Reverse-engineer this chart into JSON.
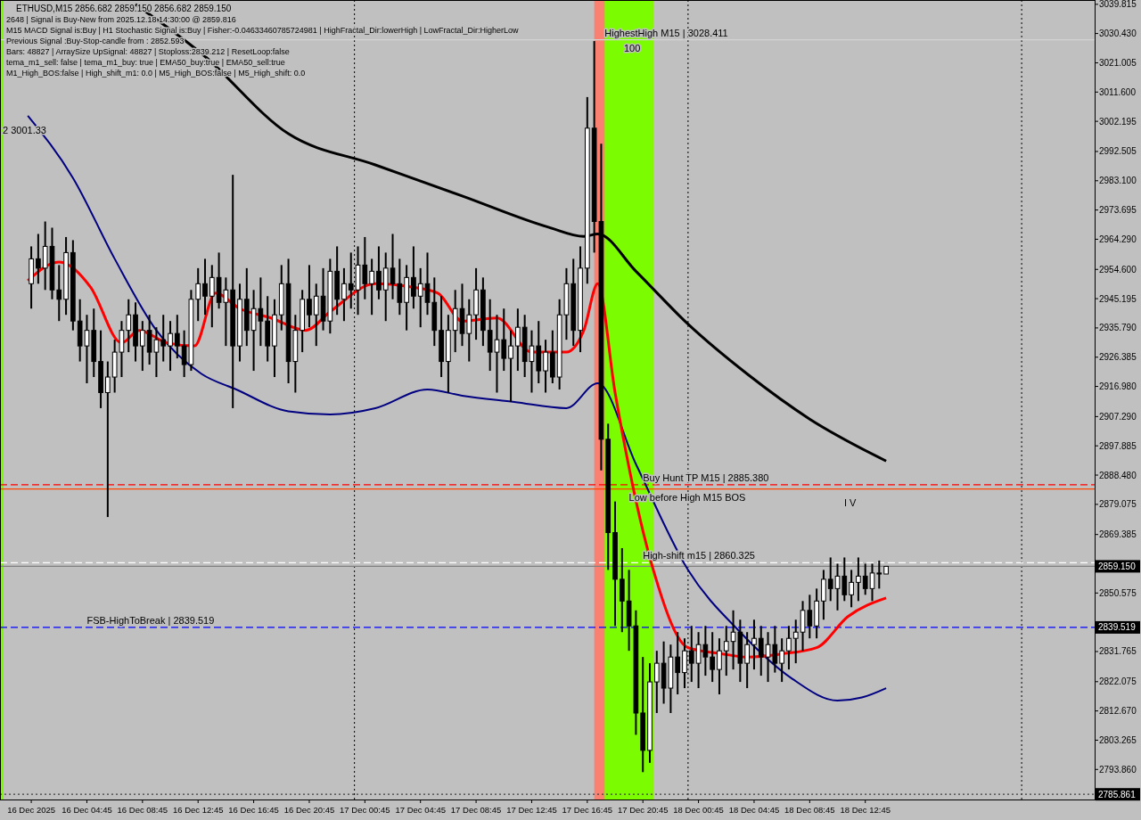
{
  "chart_data": {
    "type": "candlestick",
    "title": "ETHUSD,M15  2856.682 2859.150 2856.682 2859.150",
    "x": [
      "2025-12-16T00:45",
      "2025-12-16T01:15",
      "2025-12-16T01:45",
      "2025-12-16T02:15",
      "2025-12-16T02:45",
      "2025-12-16T03:15",
      "2025-12-16T03:45",
      "2025-12-16T04:15",
      "2025-12-16T04:45",
      "2025-12-16T05:15",
      "2025-12-16T05:45",
      "2025-12-16T06:15",
      "2025-12-16T06:45",
      "2025-12-16T07:15",
      "2025-12-16T07:45",
      "2025-12-16T08:15",
      "2025-12-16T08:45",
      "2025-12-16T09:15",
      "2025-12-16T09:45",
      "2025-12-16T10:15",
      "2025-12-16T10:45",
      "2025-12-16T11:15",
      "2025-12-16T11:45",
      "2025-12-16T12:15",
      "2025-12-16T12:45",
      "2025-12-16T13:15",
      "2025-12-16T13:45",
      "2025-12-16T14:15",
      "2025-12-16T14:45",
      "2025-12-16T15:15",
      "2025-12-16T15:45",
      "2025-12-16T16:15",
      "2025-12-16T16:45",
      "2025-12-16T17:15",
      "2025-12-16T17:45",
      "2025-12-16T18:15",
      "2025-12-16T18:45",
      "2025-12-16T19:15",
      "2025-12-16T19:45",
      "2025-12-16T20:15",
      "2025-12-16T20:45",
      "2025-12-16T21:15",
      "2025-12-16T21:45",
      "2025-12-16T22:15",
      "2025-12-16T22:45",
      "2025-12-16T23:15",
      "2025-12-16T23:45",
      "2025-12-17T00:15",
      "2025-12-17T00:45",
      "2025-12-17T01:15",
      "2025-12-17T01:45",
      "2025-12-17T02:15",
      "2025-12-17T02:45",
      "2025-12-17T03:15",
      "2025-12-17T03:45",
      "2025-12-17T04:15",
      "2025-12-17T04:45",
      "2025-12-17T05:15",
      "2025-12-17T05:45",
      "2025-12-17T06:15",
      "2025-12-17T06:45",
      "2025-12-17T07:15",
      "2025-12-17T07:45",
      "2025-12-17T08:15",
      "2025-12-17T08:45",
      "2025-12-17T09:15",
      "2025-12-17T09:45",
      "2025-12-17T10:15",
      "2025-12-17T10:45",
      "2025-12-17T11:15",
      "2025-12-17T11:45",
      "2025-12-17T12:15",
      "2025-12-17T12:45",
      "2025-12-17T13:15",
      "2025-12-17T13:45",
      "2025-12-17T14:15",
      "2025-12-17T14:45",
      "2025-12-17T15:15",
      "2025-12-17T15:45",
      "2025-12-17T16:15",
      "2025-12-17T16:45",
      "2025-12-17T17:15",
      "2025-12-17T17:45",
      "2025-12-17T18:15",
      "2025-12-17T18:45",
      "2025-12-17T19:15",
      "2025-12-17T19:45",
      "2025-12-17T20:15",
      "2025-12-17T20:45",
      "2025-12-17T21:15",
      "2025-12-17T21:45",
      "2025-12-17T22:15",
      "2025-12-17T22:45",
      "2025-12-17T23:15",
      "2025-12-17T23:45",
      "2025-12-18T00:15",
      "2025-12-18T00:45",
      "2025-12-18T01:15",
      "2025-12-18T01:45",
      "2025-12-18T02:15",
      "2025-12-18T02:45",
      "2025-12-18T03:15",
      "2025-12-18T03:45",
      "2025-12-18T04:15",
      "2025-12-18T04:45",
      "2025-12-18T05:15",
      "2025-12-18T05:45",
      "2025-12-18T06:15",
      "2025-12-18T06:45",
      "2025-12-18T07:15",
      "2025-12-18T07:45",
      "2025-12-18T08:15",
      "2025-12-18T08:45",
      "2025-12-18T09:15",
      "2025-12-18T09:45",
      "2025-12-18T10:15",
      "2025-12-18T10:45",
      "2025-12-18T11:15",
      "2025-12-18T11:45",
      "2025-12-18T12:15",
      "2025-12-18T12:45",
      "2025-12-18T13:15",
      "2025-12-18T13:45",
      "2025-12-18T14:15"
    ],
    "ohlc": [
      [
        2950,
        2962,
        2942,
        2958
      ],
      [
        2958,
        2966,
        2950,
        2955
      ],
      [
        2955,
        2970,
        2948,
        2962
      ],
      [
        2962,
        2968,
        2945,
        2948
      ],
      [
        2948,
        2956,
        2938,
        2945
      ],
      [
        2945,
        2965,
        2940,
        2960
      ],
      [
        2960,
        2964,
        2935,
        2938
      ],
      [
        2938,
        2945,
        2925,
        2930
      ],
      [
        2930,
        2940,
        2918,
        2935
      ],
      [
        2935,
        2942,
        2920,
        2925
      ],
      [
        2925,
        2935,
        2910,
        2915
      ],
      [
        2915,
        2925,
        2875,
        2920
      ],
      [
        2920,
        2932,
        2915,
        2928
      ],
      [
        2928,
        2938,
        2920,
        2935
      ],
      [
        2935,
        2945,
        2928,
        2940
      ],
      [
        2940,
        2944,
        2925,
        2930
      ],
      [
        2930,
        2938,
        2922,
        2935
      ],
      [
        2935,
        2940,
        2924,
        2928
      ],
      [
        2928,
        2936,
        2920,
        2932
      ],
      [
        2932,
        2940,
        2925,
        2930
      ],
      [
        2930,
        2938,
        2922,
        2934
      ],
      [
        2934,
        2940,
        2926,
        2930
      ],
      [
        2930,
        2935,
        2920,
        2924
      ],
      [
        2924,
        2948,
        2922,
        2945
      ],
      [
        2945,
        2955,
        2938,
        2950
      ],
      [
        2950,
        2958,
        2940,
        2946
      ],
      [
        2946,
        2956,
        2936,
        2952
      ],
      [
        2952,
        2960,
        2942,
        2944
      ],
      [
        2944,
        2952,
        2930,
        2948
      ],
      [
        2948,
        2985,
        2910,
        2930
      ],
      [
        2930,
        2950,
        2925,
        2945
      ],
      [
        2945,
        2955,
        2930,
        2935
      ],
      [
        2935,
        2948,
        2922,
        2942
      ],
      [
        2942,
        2952,
        2930,
        2938
      ],
      [
        2938,
        2946,
        2925,
        2930
      ],
      [
        2930,
        2945,
        2920,
        2940
      ],
      [
        2940,
        2956,
        2935,
        2950
      ],
      [
        2950,
        2958,
        2918,
        2925
      ],
      [
        2925,
        2940,
        2915,
        2935
      ],
      [
        2935,
        2948,
        2928,
        2945
      ],
      [
        2945,
        2956,
        2936,
        2940
      ],
      [
        2940,
        2950,
        2930,
        2946
      ],
      [
        2946,
        2955,
        2935,
        2938
      ],
      [
        2938,
        2958,
        2934,
        2954
      ],
      [
        2954,
        2962,
        2940,
        2945
      ],
      [
        2945,
        2955,
        2938,
        2950
      ],
      [
        2950,
        2960,
        2942,
        2948
      ],
      [
        2948,
        2962,
        2940,
        2956
      ],
      [
        2956,
        2965,
        2945,
        2950
      ],
      [
        2950,
        2958,
        2940,
        2954
      ],
      [
        2954,
        2962,
        2945,
        2948
      ],
      [
        2948,
        2960,
        2938,
        2955
      ],
      [
        2955,
        2966,
        2945,
        2950
      ],
      [
        2950,
        2958,
        2940,
        2944
      ],
      [
        2944,
        2956,
        2935,
        2952
      ],
      [
        2952,
        2962,
        2942,
        2946
      ],
      [
        2946,
        2955,
        2936,
        2950
      ],
      [
        2950,
        2960,
        2940,
        2944
      ],
      [
        2944,
        2952,
        2930,
        2935
      ],
      [
        2935,
        2946,
        2920,
        2925
      ],
      [
        2925,
        2940,
        2915,
        2935
      ],
      [
        2935,
        2948,
        2928,
        2942
      ],
      [
        2942,
        2950,
        2930,
        2934
      ],
      [
        2934,
        2945,
        2925,
        2940
      ],
      [
        2940,
        2955,
        2932,
        2948
      ],
      [
        2948,
        2952,
        2930,
        2935
      ],
      [
        2935,
        2945,
        2922,
        2928
      ],
      [
        2928,
        2940,
        2915,
        2932
      ],
      [
        2932,
        2942,
        2922,
        2926
      ],
      [
        2926,
        2935,
        2912,
        2930
      ],
      [
        2930,
        2942,
        2922,
        2936
      ],
      [
        2936,
        2940,
        2920,
        2925
      ],
      [
        2925,
        2935,
        2915,
        2930
      ],
      [
        2930,
        2938,
        2918,
        2922
      ],
      [
        2922,
        2932,
        2915,
        2928
      ],
      [
        2928,
        2935,
        2918,
        2920
      ],
      [
        2920,
        2945,
        2916,
        2940
      ],
      [
        2940,
        2955,
        2932,
        2950
      ],
      [
        2950,
        2958,
        2930,
        2935
      ],
      [
        2935,
        2962,
        2928,
        2955
      ],
      [
        2955,
        3010,
        2950,
        3000
      ],
      [
        3000,
        3028,
        2960,
        2970
      ],
      [
        2970,
        2995,
        2890,
        2900
      ],
      [
        2900,
        2905,
        2858,
        2870
      ],
      [
        2870,
        2880,
        2840,
        2855
      ],
      [
        2855,
        2865,
        2838,
        2848
      ],
      [
        2848,
        2858,
        2832,
        2840
      ],
      [
        2840,
        2845,
        2805,
        2812
      ],
      [
        2812,
        2830,
        2793,
        2800
      ],
      [
        2800,
        2828,
        2796,
        2822
      ],
      [
        2822,
        2832,
        2812,
        2828
      ],
      [
        2828,
        2835,
        2815,
        2820
      ],
      [
        2820,
        2834,
        2812,
        2830
      ],
      [
        2830,
        2838,
        2818,
        2825
      ],
      [
        2825,
        2836,
        2820,
        2832
      ],
      [
        2832,
        2840,
        2822,
        2828
      ],
      [
        2828,
        2838,
        2820,
        2834
      ],
      [
        2834,
        2840,
        2824,
        2830
      ],
      [
        2830,
        2838,
        2822,
        2826
      ],
      [
        2826,
        2836,
        2818,
        2832
      ],
      [
        2832,
        2840,
        2824,
        2835
      ],
      [
        2835,
        2845,
        2826,
        2838
      ],
      [
        2838,
        2842,
        2822,
        2828
      ],
      [
        2828,
        2838,
        2820,
        2834
      ],
      [
        2834,
        2842,
        2826,
        2836
      ],
      [
        2836,
        2840,
        2824,
        2830
      ],
      [
        2830,
        2838,
        2822,
        2834
      ],
      [
        2834,
        2840,
        2825,
        2828
      ],
      [
        2828,
        2836,
        2822,
        2832
      ],
      [
        2832,
        2840,
        2826,
        2836
      ],
      [
        2836,
        2842,
        2828,
        2838
      ],
      [
        2838,
        2848,
        2832,
        2845
      ],
      [
        2845,
        2850,
        2836,
        2840
      ],
      [
        2840,
        2852,
        2836,
        2848
      ],
      [
        2848,
        2858,
        2842,
        2855
      ],
      [
        2855,
        2862,
        2848,
        2852
      ],
      [
        2852,
        2860,
        2845,
        2856
      ],
      [
        2856,
        2862,
        2848,
        2850
      ],
      [
        2850,
        2858,
        2846,
        2854
      ],
      [
        2854,
        2862,
        2848,
        2856
      ],
      [
        2856,
        2860,
        2850,
        2852
      ],
      [
        2852,
        2860,
        2848,
        2857
      ],
      [
        2857,
        2861,
        2852,
        2856.682
      ],
      [
        2856.682,
        2859.15,
        2856.682,
        2859.15
      ]
    ],
    "series": [
      {
        "type": "line",
        "color": "#000000",
        "x": [
          "2025-12-16T08:15",
          "2025-12-16T13:00",
          "2025-12-16T19:15",
          "2025-12-17T01:30",
          "2025-12-17T07:45",
          "2025-12-17T14:00",
          "2025-12-17T16:30",
          "2025-12-17T17:30",
          "2025-12-17T20:15",
          "2025-12-18T00:00",
          "2025-12-18T04:15",
          "2025-12-18T08:45",
          "2025-12-18T14:15"
        ],
        "values": [
          3039.8,
          3024,
          2998.2,
          2988.2,
          2978.2,
          2968.1,
          2965.2,
          2966,
          2954,
          2937,
          2921,
          2906.5,
          2893
        ]
      },
      {
        "type": "line",
        "color": "#000080",
        "x": [
          "2025-12-16T00:30",
          "2025-12-16T03:45",
          "2025-12-16T06:45",
          "2025-12-16T09:45",
          "2025-12-16T13:00",
          "2025-12-16T15:30",
          "2025-12-16T19:15",
          "2025-12-16T22:15",
          "2025-12-17T01:30",
          "2025-12-17T05:15",
          "2025-12-17T07:45",
          "2025-12-17T11:30",
          "2025-12-17T15:15",
          "2025-12-17T17:30",
          "2025-12-17T20:15",
          "2025-12-18T00:00",
          "2025-12-18T03:45",
          "2025-12-18T07:30",
          "2025-12-18T10:45",
          "2025-12-18T12:30",
          "2025-12-18T14:15"
        ],
        "values": [
          3004,
          2984,
          2958,
          2935,
          2921,
          2916,
          2909,
          2908,
          2910,
          2916,
          2914,
          2912,
          2910,
          2918,
          2892,
          2858,
          2838,
          2823,
          2816,
          2817,
          2820
        ]
      },
      {
        "type": "line",
        "color": "#ff0000",
        "x": [
          "2025-12-16T00:30",
          "2025-12-16T02:45",
          "2025-12-16T05:00",
          "2025-12-16T07:15",
          "2025-12-16T08:30",
          "2025-12-16T10:30",
          "2025-12-16T12:30",
          "2025-12-16T14:00",
          "2025-12-16T15:45",
          "2025-12-16T18:00",
          "2025-12-16T20:30",
          "2025-12-16T22:15",
          "2025-12-17T01:30",
          "2025-12-17T04:00",
          "2025-12-17T06:00",
          "2025-12-17T07:45",
          "2025-12-17T10:15",
          "2025-12-17T12:45",
          "2025-12-17T15:15",
          "2025-12-17T16:30",
          "2025-12-17T17:30",
          "2025-12-17T18:45",
          "2025-12-17T21:30",
          "2025-12-18T00:00",
          "2025-12-18T02:30",
          "2025-12-18T04:15",
          "2025-12-18T06:45",
          "2025-12-18T09:15",
          "2025-12-18T11:30",
          "2025-12-18T14:15"
        ],
        "values": [
          2951,
          2957,
          2949,
          2931,
          2935,
          2931,
          2930,
          2947,
          2942,
          2939,
          2935,
          2941,
          2950,
          2949,
          2947,
          2938,
          2939,
          2928,
          2928,
          2935,
          2950,
          2915,
          2858,
          2833,
          2831,
          2830,
          2831,
          2833,
          2843,
          2849
        ]
      }
    ],
    "xlim": [
      "2025-12-15T22:30",
      "2025-12-19T05:15"
    ],
    "ylim": [
      2784.2,
      3041.2
    ],
    "xticks": [
      {
        "value": "2025-12-16T00:45",
        "label": "16 Dec 2025"
      },
      {
        "value": "2025-12-16T04:45",
        "label": "16 Dec 04:45"
      },
      {
        "value": "2025-12-16T08:45",
        "label": "16 Dec 08:45"
      },
      {
        "value": "2025-12-16T12:45",
        "label": "16 Dec 12:45"
      },
      {
        "value": "2025-12-16T16:45",
        "label": "16 Dec 16:45"
      },
      {
        "value": "2025-12-16T20:45",
        "label": "16 Dec 20:45"
      },
      {
        "value": "2025-12-17T00:45",
        "label": "17 Dec 00:45"
      },
      {
        "value": "2025-12-17T04:45",
        "label": "17 Dec 04:45"
      },
      {
        "value": "2025-12-17T08:45",
        "label": "17 Dec 08:45"
      },
      {
        "value": "2025-12-17T12:45",
        "label": "17 Dec 12:45"
      },
      {
        "value": "2025-12-17T16:45",
        "label": "17 Dec 16:45"
      },
      {
        "value": "2025-12-17T20:45",
        "label": "17 Dec 20:45"
      },
      {
        "value": "2025-12-18T00:45",
        "label": "18 Dec 00:45"
      },
      {
        "value": "2025-12-18T04:45",
        "label": "18 Dec 04:45"
      },
      {
        "value": "2025-12-18T08:45",
        "label": "18 Dec 08:45"
      },
      {
        "value": "2025-12-18T12:45",
        "label": "18 Dec 12:45"
      }
    ],
    "yticks": [
      {
        "value": 3039.815,
        "label": "3039.815"
      },
      {
        "value": 3030.43,
        "label": "3030.430"
      },
      {
        "value": 3021.005,
        "label": "3021.005"
      },
      {
        "value": 3011.6,
        "label": "3011.600"
      },
      {
        "value": 3002.195,
        "label": "3002.195"
      },
      {
        "value": 2992.505,
        "label": "2992.505"
      },
      {
        "value": 2983.1,
        "label": "2983.100"
      },
      {
        "value": 2973.695,
        "label": "2973.695"
      },
      {
        "value": 2964.29,
        "label": "2964.290"
      },
      {
        "value": 2954.6,
        "label": "2954.600"
      },
      {
        "value": 2945.195,
        "label": "2945.195"
      },
      {
        "value": 2935.79,
        "label": "2935.790"
      },
      {
        "value": 2926.385,
        "label": "2926.385"
      },
      {
        "value": 2916.98,
        "label": "2916.980"
      },
      {
        "value": 2907.29,
        "label": "2907.290"
      },
      {
        "value": 2897.885,
        "label": "2897.885"
      },
      {
        "value": 2888.48,
        "label": "2888.480"
      },
      {
        "value": 2879.075,
        "label": "2879.075"
      },
      {
        "value": 2869.385,
        "label": "2869.385"
      },
      {
        "value": 2850.575,
        "label": "2850.575"
      },
      {
        "value": 2831.765,
        "label": "2831.765"
      },
      {
        "value": 2822.075,
        "label": "2822.075"
      },
      {
        "value": 2812.67,
        "label": "2812.670"
      },
      {
        "value": 2803.265,
        "label": "2803.265"
      },
      {
        "value": 2793.86,
        "label": "2793.860"
      }
    ],
    "bands": [
      {
        "axis": "x",
        "from": "2025-12-15T22:30",
        "to": "2025-12-15T22:45",
        "color": "#7cfc00"
      },
      {
        "axis": "x",
        "from": "2025-12-17T17:15",
        "to": "2025-12-17T21:30",
        "color": "#fa8072"
      },
      {
        "axis": "x",
        "from": "2025-12-17T18:00",
        "to": "2025-12-17T21:30",
        "color": "#7cfc00"
      }
    ],
    "ref_lines": [
      {
        "axis": "x",
        "value": "2025-12-17T00:00",
        "color": "#000000",
        "line_style": "dotted"
      },
      {
        "axis": "x",
        "value": "2025-12-18T00:00",
        "color": "#000000",
        "line_style": "dotted"
      },
      {
        "axis": "x",
        "value": "2025-12-19T00:00",
        "color": "#000000",
        "line_style": "dotted"
      },
      {
        "axis": "y",
        "value": 3028.411,
        "color": "#d3d3d3",
        "line_style": "solid"
      },
      {
        "axis": "y",
        "value": 2885.38,
        "color": "#ff0000",
        "line_style": "dashed"
      },
      {
        "axis": "y",
        "value": 2884.0,
        "color": "#ff4500",
        "line_style": "solid"
      },
      {
        "axis": "y",
        "value": 2860.325,
        "color": "#ffffff",
        "line_style": "dashed"
      },
      {
        "axis": "y",
        "value": 2859.15,
        "color": "#808080",
        "line_style": "solid",
        "label": "2859.150"
      },
      {
        "axis": "y",
        "value": 2839.519,
        "color": "#0000ff",
        "line_style": "dashed",
        "label": "2839.519"
      },
      {
        "axis": "y",
        "value": 2785.861,
        "color": "#404040",
        "line_style": "dotted",
        "label": "2785.861"
      }
    ],
    "annotations": [
      "2648 | Signal is Buy-New from 2025.12.18 14:30:00 @ 2859.816",
      "M15 MACD Signal is:Buy | H1 Stochastic Signal is:Buy | Fisher:-0.04633460785724981 | HighFractal_Dir:lowerHigh | LowFractal_Dir:HigherLow",
      "Previous Signal :Buy-Stop-candle from : 2852.593",
      "Bars: 48827 | ArraySize UpSignal: 48827 | Stoploss:2839.212 | ResetLoop:false",
      "tema_m1_sell: false | tema_m1_buy: true | EMA50_buy:true | EMA50_sell:true",
      "M1_High_BOS:false | High_shift_m1: 0.0 | M5_High_BOS:false | M5_High_shift: 0.0",
      "100",
      "I V",
      "2 3001.33",
      {
        "text": "HighestHigh    M15 | 3028.411",
        "x": "2025-12-17T18:00",
        "y": 3028.411
      },
      {
        "text": "Buy Hunt TP M15 | 2885.380",
        "x": "2025-12-17T20:45",
        "y": 2885.38
      },
      {
        "text": "Low before High   M15 BOS",
        "x": "2025-12-17T19:45",
        "y": 2884.0
      },
      {
        "text": "High-shift m15 | 2860.325",
        "x": "2025-12-17T20:45",
        "y": 2860.325
      },
      {
        "text": "FSB-HighToBreak | 2839.519",
        "x": "2025-12-16T04:45",
        "y": 2839.519
      }
    ]
  }
}
